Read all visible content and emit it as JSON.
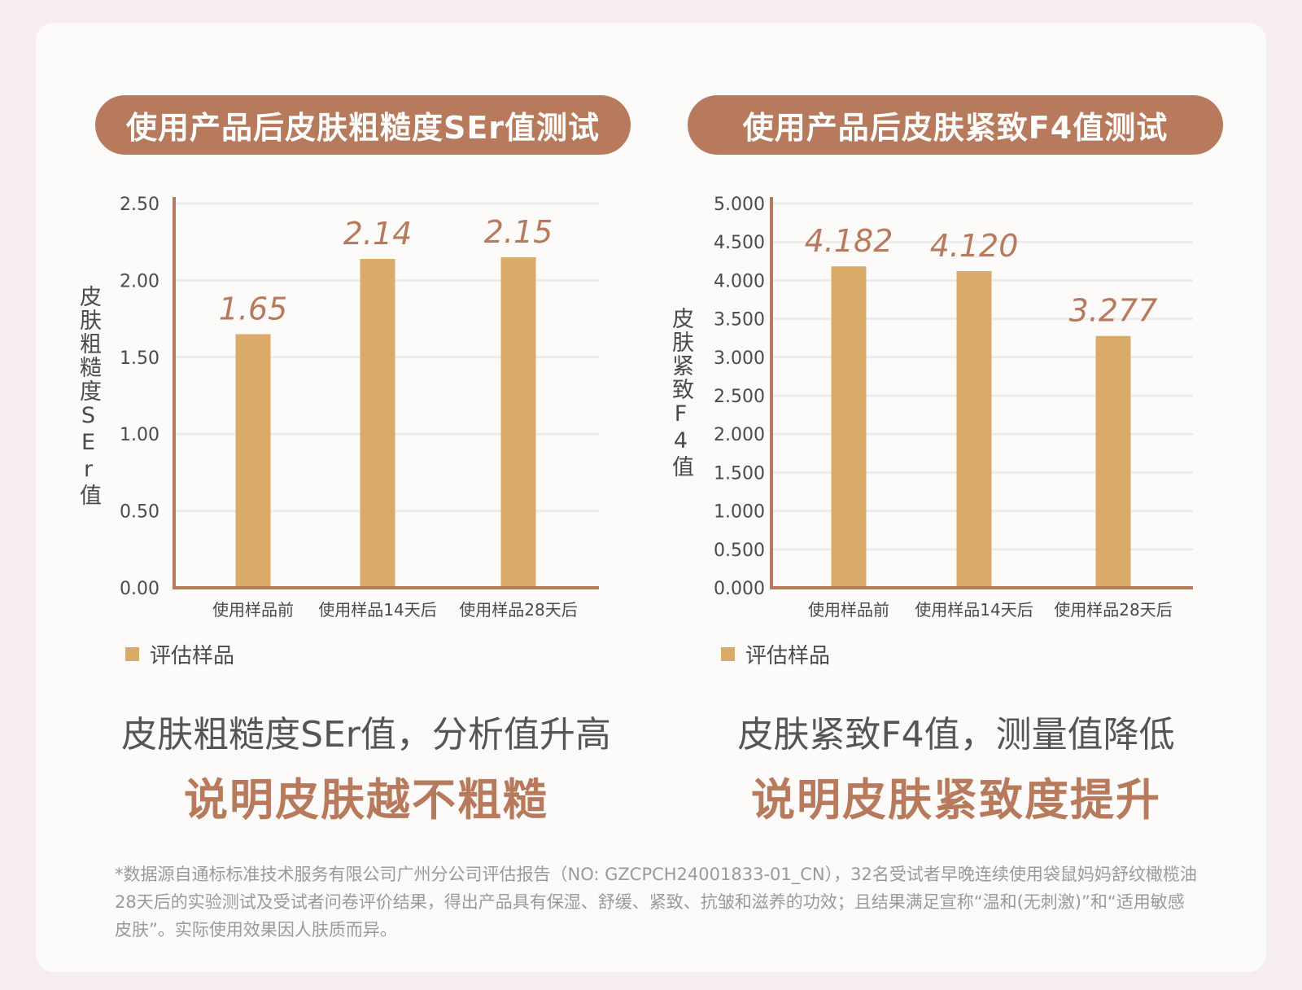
{
  "charts": [
    {
      "title": "使用产品后皮肤粗糙度SEr值测试",
      "ylabel": "皮肤粗糙度SEr值",
      "legend": "评估样品",
      "statement": "皮肤粗糙度SEr值，分析值升高",
      "conclusion": "说明皮肤越不粗糙"
    },
    {
      "title": "使用产品后皮肤紧致F4值测试",
      "ylabel": "皮肤紧致F4值",
      "legend": "评估样品",
      "statement": "皮肤紧致F4值，测量值降低",
      "conclusion": "说明皮肤紧致度提升"
    }
  ],
  "footnote": "*数据源自通标标准技术服务有限公司广州分公司评估报告（NO:  GZCPCH24001833-01_CN），32名受试者早晚连续使用袋鼠妈妈舒纹橄榄油28天后的实验测试及受试者问卷评价结果，得出产品具有保湿、舒缓、紧致、抗皱和滋养的功效；且结果满足宣称“温和(无刺激)”和“适用敏感皮肤”。实际使用效果因人肤质而异。",
  "colors": {
    "bar": "#d9aa68",
    "accent": "#b87a5c",
    "axis": "#b87a5c",
    "grid": "#ececec"
  },
  "chart_data": [
    {
      "type": "bar",
      "title": "使用产品后皮肤粗糙度SEr值测试",
      "ylabel": "皮肤粗糙度SEr值",
      "categories": [
        "使用样品前",
        "使用样品14天后",
        "使用样品28天后"
      ],
      "series": [
        {
          "name": "评估样品",
          "values": [
            1.65,
            2.14,
            2.15
          ]
        }
      ],
      "value_labels": [
        "1.65",
        "2.14",
        "2.15"
      ],
      "yticks": [
        "0.00",
        "0.50",
        "1.00",
        "1.50",
        "2.00",
        "2.50"
      ],
      "ylim": [
        0,
        2.5
      ],
      "grid": true,
      "legend_position": "bottom-left"
    },
    {
      "type": "bar",
      "title": "使用产品后皮肤紧致F4值测试",
      "ylabel": "皮肤紧致F4值",
      "categories": [
        "使用样品前",
        "使用样品14天后",
        "使用样品28天后"
      ],
      "series": [
        {
          "name": "评估样品",
          "values": [
            4.182,
            4.12,
            3.277
          ]
        }
      ],
      "value_labels": [
        "4.182",
        "4.120",
        "3.277"
      ],
      "yticks": [
        "0.000",
        "0.500",
        "1.000",
        "1.500",
        "2.000",
        "2.500",
        "3.000",
        "3.500",
        "4.000",
        "4.500",
        "5.000"
      ],
      "ylim": [
        0,
        5
      ],
      "grid": true,
      "legend_position": "bottom-left"
    }
  ]
}
